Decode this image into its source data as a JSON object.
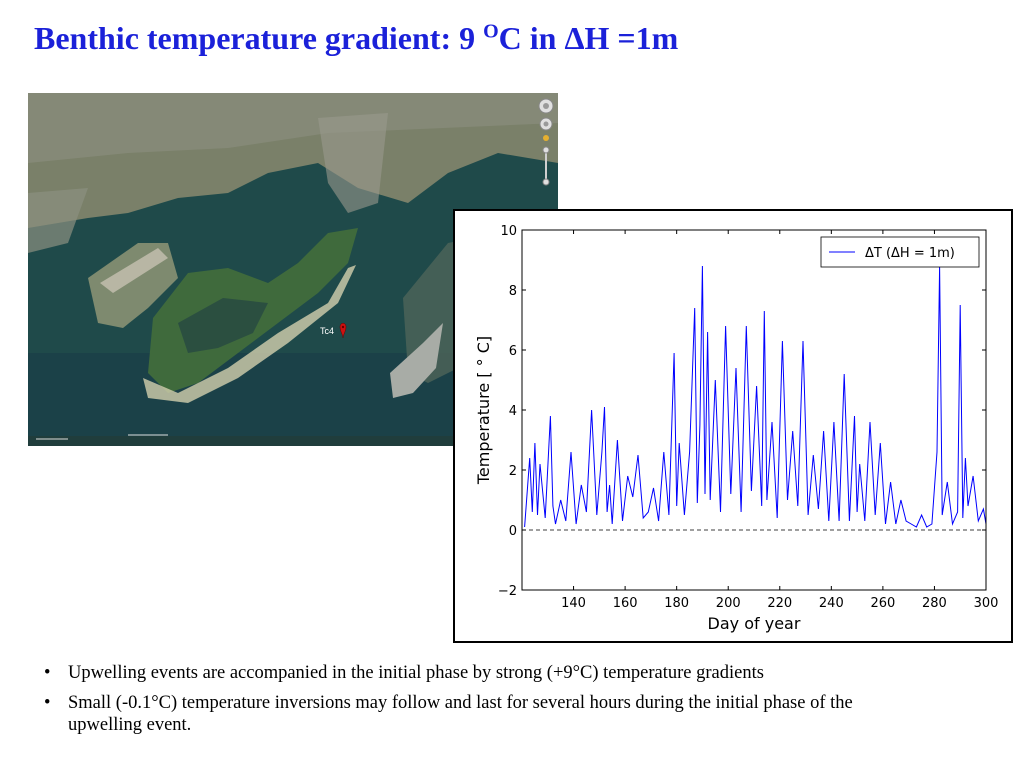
{
  "slide": {
    "title_main": "Benthic temperature gradient:  9 ",
    "title_sup": "O",
    "title_rest": "C in ΔH =1m"
  },
  "map": {
    "station_label": "Tc4"
  },
  "bullets": [
    "Upwelling events are accompanied in the initial phase by strong (+9°C) temperature gradients",
    "Small (-0.1°C) temperature inversions may follow and last for several hours during the initial phase of the upwelling event."
  ],
  "chart_data": {
    "type": "line",
    "xlabel": "Day of year",
    "ylabel": "Temperature [ ° C]",
    "xlim": [
      120,
      300
    ],
    "ylim": [
      -2,
      10
    ],
    "xticks": [
      140,
      160,
      180,
      200,
      220,
      240,
      260,
      280,
      300
    ],
    "yticks": [
      -2,
      0,
      2,
      4,
      6,
      8,
      10
    ],
    "xtick_labels": [
      "140",
      "160",
      "180",
      "200",
      "220",
      "240",
      "260",
      "280",
      "300"
    ],
    "ytick_labels": [
      "−2",
      "0",
      "2",
      "4",
      "6",
      "8",
      "10"
    ],
    "legend_placement": "top-right",
    "series": [
      {
        "name": "ΔT (ΔH = 1m)",
        "color": "#0000ff",
        "x": [
          121,
          123,
          124,
          125,
          126,
          127,
          129,
          131,
          132,
          133,
          135,
          137,
          139,
          141,
          143,
          145,
          147,
          149,
          151,
          152,
          153,
          154,
          155,
          157,
          159,
          161,
          163,
          165,
          167,
          169,
          171,
          173,
          175,
          177,
          179,
          180,
          181,
          183,
          185,
          187,
          188,
          189,
          190,
          191,
          192,
          193,
          195,
          197,
          199,
          201,
          203,
          205,
          207,
          209,
          211,
          213,
          214,
          215,
          217,
          219,
          221,
          223,
          225,
          227,
          229,
          231,
          233,
          235,
          237,
          239,
          241,
          243,
          245,
          247,
          249,
          250,
          251,
          253,
          255,
          257,
          259,
          261,
          263,
          265,
          267,
          269,
          271,
          273,
          275,
          277,
          279,
          281,
          282,
          283,
          285,
          287,
          289,
          290,
          291,
          292,
          293,
          295,
          297,
          299,
          300
        ],
        "y": [
          0.1,
          2.4,
          0.6,
          2.9,
          0.5,
          2.2,
          0.4,
          3.8,
          0.8,
          0.2,
          1.0,
          0.3,
          2.6,
          0.2,
          1.5,
          0.6,
          4.0,
          0.5,
          2.6,
          4.1,
          0.6,
          1.5,
          0.2,
          3.0,
          0.3,
          1.8,
          1.1,
          2.5,
          0.4,
          0.6,
          1.4,
          0.3,
          2.6,
          0.5,
          5.9,
          0.8,
          2.9,
          0.5,
          2.6,
          7.4,
          0.9,
          3.5,
          8.8,
          1.2,
          6.6,
          1.0,
          5.0,
          0.6,
          6.8,
          1.2,
          5.4,
          0.6,
          6.8,
          1.3,
          4.8,
          0.8,
          7.3,
          1.0,
          3.6,
          0.4,
          6.3,
          1.0,
          3.3,
          0.8,
          6.3,
          0.5,
          2.5,
          0.7,
          3.3,
          0.3,
          3.6,
          0.3,
          5.2,
          0.3,
          3.8,
          0.6,
          2.2,
          0.3,
          3.6,
          0.5,
          2.9,
          0.2,
          1.6,
          0.2,
          1.0,
          0.3,
          0.2,
          0.1,
          0.5,
          0.1,
          0.2,
          2.6,
          8.8,
          0.5,
          1.6,
          0.2,
          0.6,
          7.5,
          0.4,
          2.4,
          0.8,
          1.8,
          0.3,
          0.7,
          0.2
        ]
      }
    ]
  }
}
